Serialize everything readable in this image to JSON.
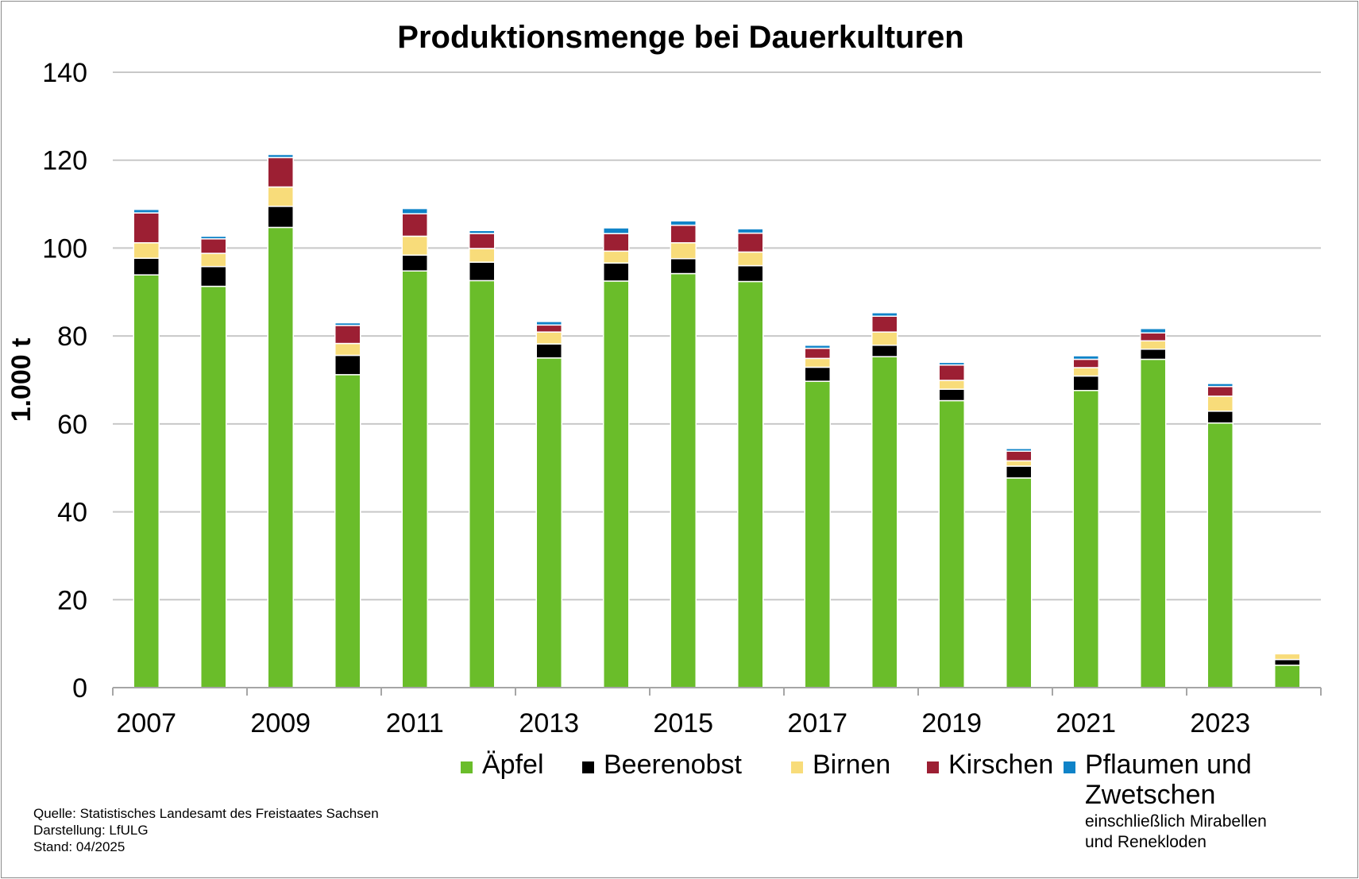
{
  "chart_data": {
    "type": "bar",
    "stacked": true,
    "title": "Produktionsmenge bei Dauerkulturen",
    "ylabel": "1.000 t",
    "xlabel": "",
    "ylim": [
      0,
      140
    ],
    "yticks": [
      0,
      20,
      40,
      60,
      80,
      100,
      120,
      140
    ],
    "grid": true,
    "legend_position": "bottom-right",
    "categories": [
      "2007",
      "2008",
      "2009",
      "2010",
      "2011",
      "2012",
      "2013",
      "2014",
      "2015",
      "2016",
      "2017",
      "2018",
      "2019",
      "2020",
      "2021",
      "2022",
      "2023",
      "2024"
    ],
    "xtick_labels": [
      "2007",
      "2009",
      "2011",
      "2013",
      "2015",
      "2017",
      "2019",
      "2021",
      "2023"
    ],
    "series": [
      {
        "name": "Äpfel",
        "color": "#6ABD2A",
        "values": [
          93.9,
          91.3,
          104.7,
          71.2,
          94.8,
          92.6,
          75.0,
          92.5,
          94.2,
          92.4,
          69.7,
          75.3,
          65.3,
          47.7,
          67.6,
          74.7,
          60.2,
          5.1
        ]
      },
      {
        "name": "Beerenobst",
        "color": "#000000",
        "values": [
          3.8,
          4.5,
          4.8,
          4.4,
          3.6,
          4.2,
          3.2,
          4.1,
          3.4,
          3.6,
          3.2,
          2.6,
          2.6,
          2.7,
          3.3,
          2.3,
          2.7,
          1.3
        ]
      },
      {
        "name": "Birnen",
        "color": "#F8DC7A",
        "values": [
          3.5,
          3.0,
          4.4,
          2.7,
          4.3,
          3.1,
          2.7,
          2.7,
          3.6,
          3.1,
          2.0,
          3.0,
          2.0,
          1.2,
          1.9,
          1.9,
          3.4,
          1.3
        ]
      },
      {
        "name": "Kirschen",
        "color": "#9C1F33",
        "values": [
          6.8,
          3.3,
          6.7,
          4.1,
          5.1,
          3.4,
          1.6,
          4.0,
          4.0,
          4.3,
          2.3,
          3.6,
          3.5,
          2.2,
          1.9,
          1.8,
          2.2,
          0.0
        ]
      },
      {
        "name": "Pflaumen und Zwetschen",
        "color": "#0F83C8",
        "values": [
          0.8,
          0.6,
          0.7,
          0.6,
          1.2,
          0.7,
          0.8,
          1.3,
          1.0,
          1.0,
          0.7,
          0.8,
          0.6,
          0.6,
          0.8,
          1.0,
          0.7,
          0.0
        ]
      }
    ]
  },
  "legend": {
    "items": [
      {
        "label": "Äpfel",
        "color": "#6ABD2A"
      },
      {
        "label": "Beerenobst",
        "color": "#000000"
      },
      {
        "label": "Birnen",
        "color": "#F8DC7A"
      },
      {
        "label": "Kirschen",
        "color": "#9C1F33"
      },
      {
        "label": "Pflaumen und Zwetschen",
        "color": "#0F83C8"
      }
    ],
    "note": "einschließlich  Mirabellen und  Renekloden"
  },
  "source": {
    "line1": "Quelle: Statistisches Landesamt des Freistaates Sachsen",
    "line2": "Darstellung: LfULG",
    "line3": "Stand: 04/2025"
  }
}
